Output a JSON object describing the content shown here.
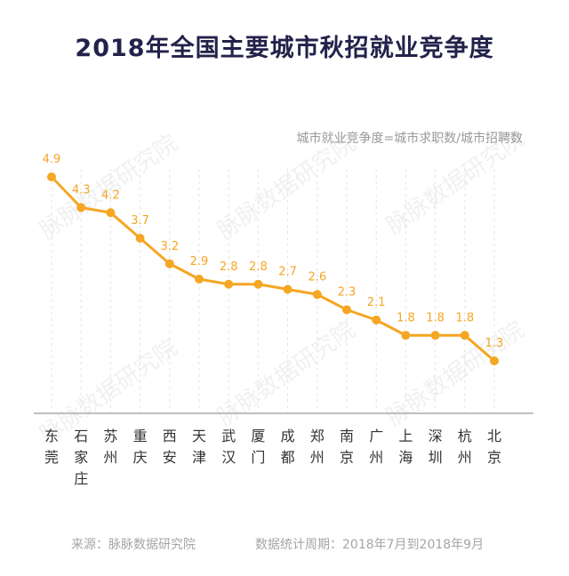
{
  "chart_data": {
    "type": "line",
    "title": "2018年全国主要城市秋招就业竞争度",
    "subtitle": "城市就业竞争度=城市求职数/城市招聘数",
    "categories": [
      "东莞",
      "石家庄",
      "苏州",
      "重庆",
      "西安",
      "天津",
      "武汉",
      "厦门",
      "成都",
      "郑州",
      "南京",
      "广州",
      "上海",
      "深圳",
      "杭州",
      "北京"
    ],
    "values": [
      4.9,
      4.3,
      4.2,
      3.7,
      3.2,
      2.9,
      2.8,
      2.8,
      2.7,
      2.6,
      2.3,
      2.1,
      1.8,
      1.8,
      1.8,
      1.3
    ],
    "ylim": [
      0,
      5
    ],
    "color": "#f5a623",
    "grid": "vertical-dashed"
  },
  "footer": {
    "source": "来源：脉脉数据研究院",
    "period": "数据统计周期：2018年7月到2018年9月"
  },
  "watermark": "脉脉数据研究院"
}
